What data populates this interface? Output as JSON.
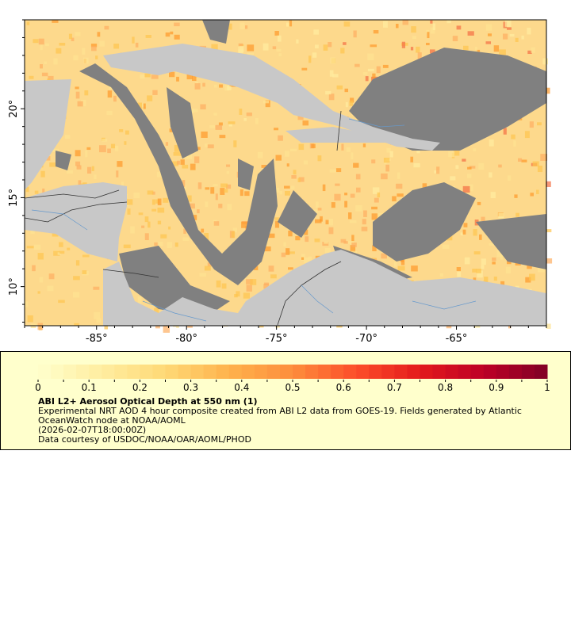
{
  "map": {
    "x_axis": {
      "ticks": [
        -85,
        -80,
        -75,
        -70,
        -65
      ],
      "labels": [
        "-85°",
        "-80°",
        "-75°",
        "-70°",
        "-65°"
      ],
      "range": [
        -89,
        -60
      ]
    },
    "y_axis": {
      "ticks": [
        10,
        15,
        20
      ],
      "labels": [
        "10°",
        "15°",
        "20°"
      ],
      "range": [
        7.8,
        25
      ]
    },
    "colors": {
      "land": "#c8c8c8",
      "no_data": "#808080",
      "borders": "#333333",
      "rivers": "#6699cc"
    }
  },
  "legend": {
    "colorbar": {
      "min": 0,
      "max": 1,
      "tick_labels": [
        "0",
        "0.1",
        "0.2",
        "0.3",
        "0.4",
        "0.5",
        "0.6",
        "0.7",
        "0.8",
        "0.9",
        "1"
      ],
      "colors": [
        "#ffffcc",
        "#ffeda0",
        "#fed976",
        "#feb24c",
        "#fd8d3c",
        "#fc4e2a",
        "#e31a1c",
        "#bd0026",
        "#800026"
      ]
    },
    "title": "ABI L2+ Aerosol Optical Depth at 550 nm (1)",
    "line1": "Experimental NRT AOD 4 hour composite created from ABI L2 data from GOES-19. Fields generated by Atlantic",
    "line2": "OceanWatch node at NOAA/AOML",
    "line3": "(2026-02-07T18:00:00Z)",
    "line4": "Data courtesy of USDOC/NOAA/OAR/AOML/PHOD"
  }
}
